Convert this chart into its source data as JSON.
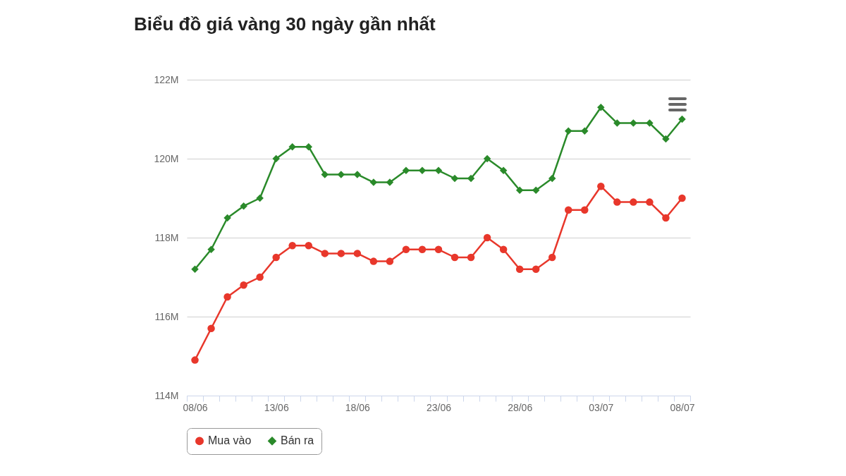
{
  "chart_data": {
    "type": "line",
    "title": "Biểu đồ giá vàng 30 ngày gần nhất",
    "categories": [
      "08/06",
      null,
      null,
      null,
      null,
      "13/06",
      null,
      null,
      null,
      null,
      "18/06",
      null,
      null,
      null,
      null,
      "23/06",
      null,
      null,
      null,
      null,
      "28/06",
      null,
      null,
      null,
      null,
      "03/07",
      null,
      null,
      null,
      null,
      "08/07"
    ],
    "series": [
      {
        "name": "Mua vào",
        "color": "#e8372b",
        "marker": "circle",
        "values": [
          114.9,
          115.7,
          116.5,
          116.8,
          117.0,
          117.5,
          117.8,
          117.8,
          117.6,
          117.6,
          117.6,
          117.4,
          117.4,
          117.7,
          117.7,
          117.7,
          117.5,
          117.5,
          118.0,
          117.7,
          117.2,
          117.2,
          117.5,
          118.7,
          118.7,
          119.3,
          118.9,
          118.9,
          118.9,
          118.5,
          119.0
        ]
      },
      {
        "name": "Bán ra",
        "color": "#2a8a2a",
        "marker": "diamond",
        "values": [
          117.2,
          117.7,
          118.5,
          118.8,
          119.0,
          120.0,
          120.3,
          120.3,
          119.6,
          119.6,
          119.6,
          119.4,
          119.4,
          119.7,
          119.7,
          119.7,
          119.5,
          119.5,
          120.0,
          119.7,
          119.2,
          119.2,
          119.5,
          120.7,
          120.7,
          121.3,
          120.9,
          120.9,
          120.9,
          120.5,
          121.0
        ]
      }
    ],
    "ylim": [
      114,
      122
    ],
    "yticks": [
      {
        "value": 114,
        "label": "114M"
      },
      {
        "value": 116,
        "label": "116M"
      },
      {
        "value": 118,
        "label": "118M"
      },
      {
        "value": 120,
        "label": "120M"
      },
      {
        "value": 122,
        "label": "122M"
      }
    ],
    "grid": "y",
    "legend": "bottom"
  }
}
